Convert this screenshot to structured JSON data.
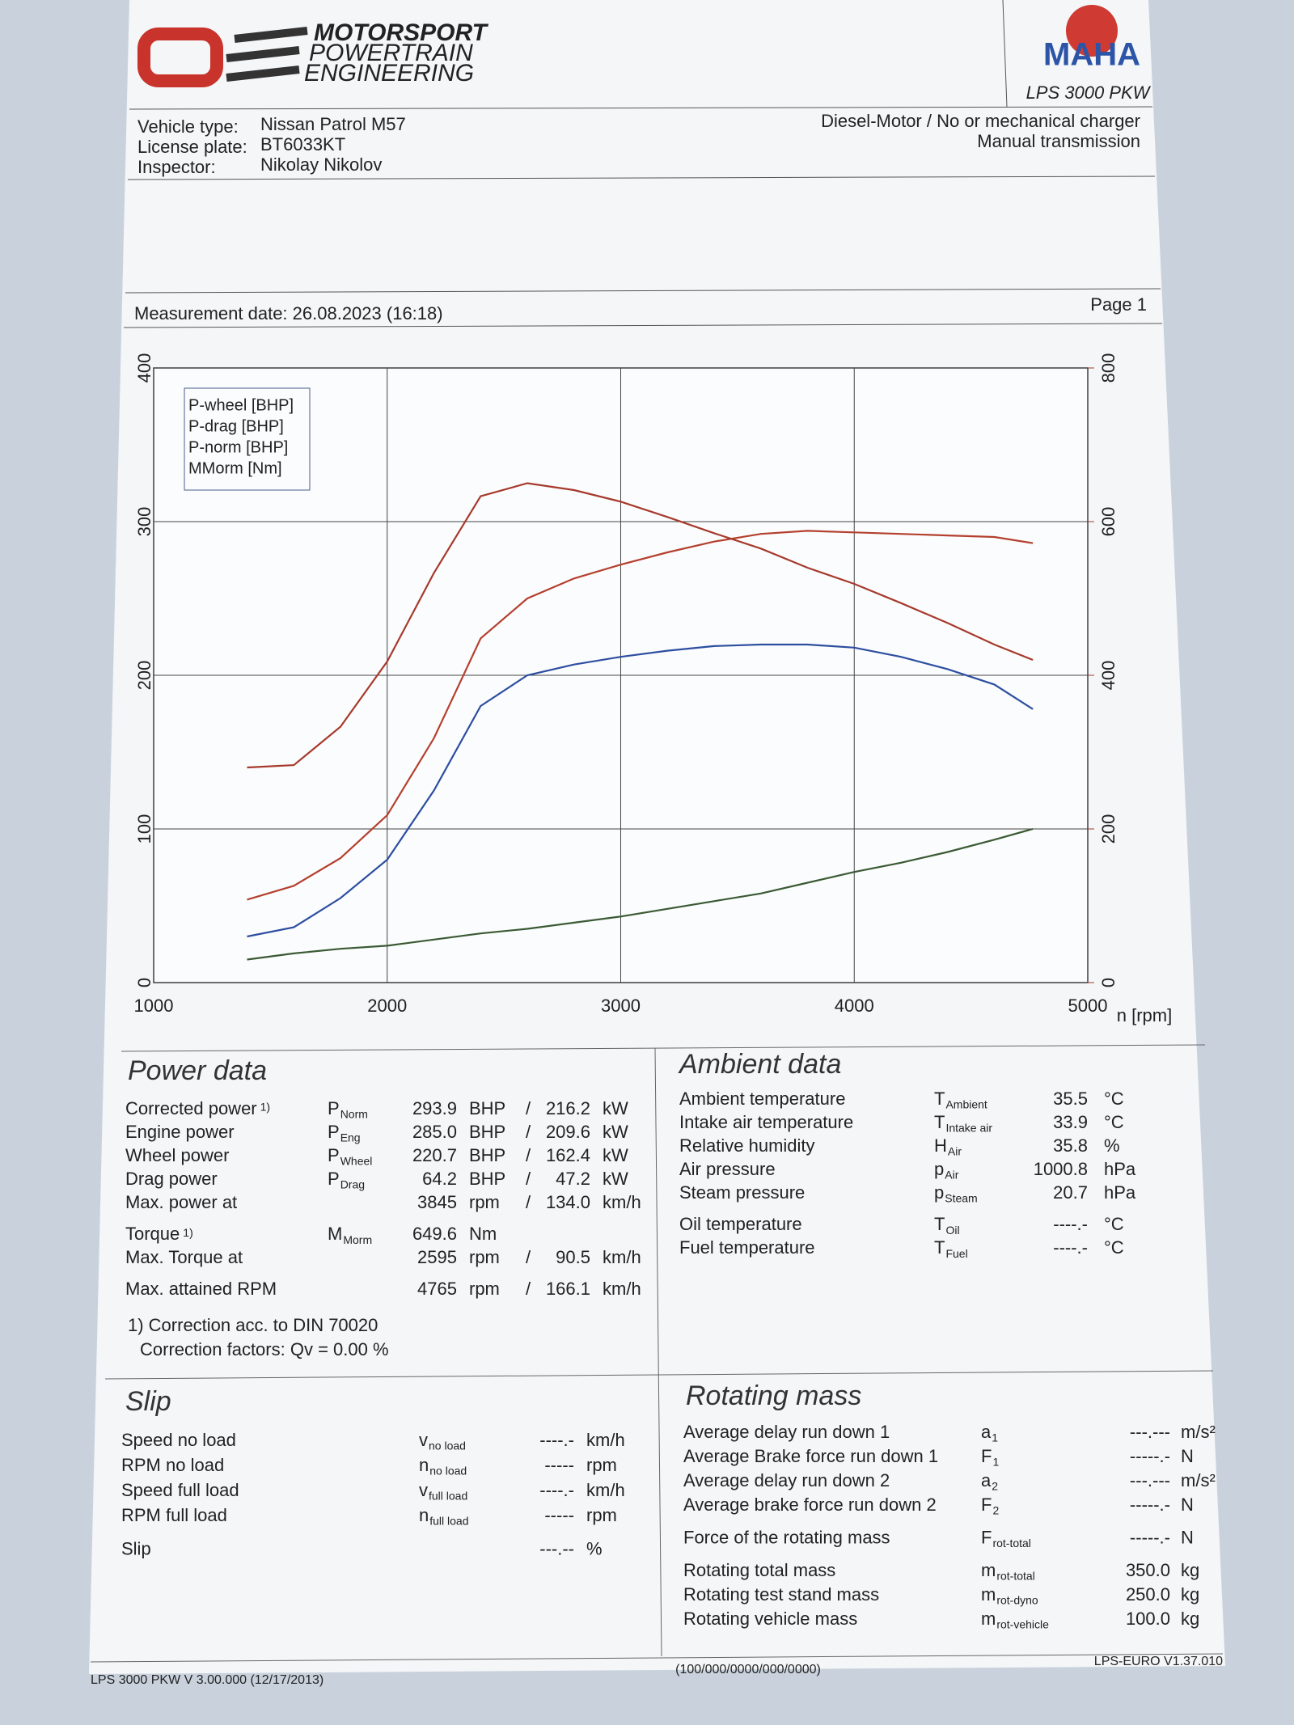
{
  "header": {
    "logo": [
      "MOTORSPORT",
      "POWERTRAIN",
      "ENGINEERING"
    ],
    "brand": "MAHA",
    "model": "LPS 3000 PKW"
  },
  "vehicle": [
    [
      "Vehicle type:",
      "Nissan Patrol M57"
    ],
    [
      "License plate:",
      "BT6033KT"
    ],
    [
      "Inspector:",
      "Nikolay Nikolov"
    ]
  ],
  "engine": [
    "Diesel-Motor / No or mechanical charger",
    "Manual transmission"
  ],
  "measurement": {
    "date": "Measurement date: 26.08.2023 (16:18)",
    "page": "Page 1"
  },
  "chart_data": {
    "type": "line",
    "x_label": "n [rpm]",
    "x": [
      1400,
      1600,
      1800,
      2000,
      2200,
      2400,
      2600,
      2800,
      3000,
      3200,
      3400,
      3600,
      3800,
      4000,
      4200,
      4400,
      4600,
      4765
    ],
    "xlim": [
      1000,
      5000
    ],
    "xticks": [
      1000,
      2000,
      3000,
      4000,
      5000
    ],
    "ylim": [
      0,
      400
    ],
    "yticks": [
      0,
      100,
      200,
      300,
      400
    ],
    "y2lim": [
      0,
      800
    ],
    "y2ticks": [
      0,
      200,
      400,
      600,
      800
    ],
    "grid": true,
    "legend": "top-left",
    "series": [
      {
        "name": "P-wheel [BHP]",
        "color": "#2d4ea0",
        "values": [
          30,
          36,
          55,
          80,
          125,
          180,
          200,
          207,
          212,
          216,
          219,
          220,
          220,
          218,
          212,
          204,
          194,
          178
        ]
      },
      {
        "name": "P-drag [BHP]",
        "color": "#3b5a34",
        "values": [
          15,
          19,
          22,
          24,
          28,
          32,
          35,
          39,
          43,
          48,
          53,
          58,
          65,
          72,
          78,
          85,
          93,
          100
        ]
      },
      {
        "name": "P-norm [BHP]",
        "color": "#b4402f",
        "values": [
          54,
          63,
          81,
          109,
          159,
          224,
          250,
          263,
          272,
          280,
          287,
          292,
          294,
          293,
          292,
          291,
          290,
          286
        ]
      },
      {
        "name": "MMorm [Nm]",
        "color": "#a63a2c",
        "axis": "y2",
        "values": [
          280,
          283,
          333,
          418,
          533,
          633,
          650,
          641,
          626,
          606,
          585,
          565,
          540,
          519,
          494,
          468,
          440,
          420
        ]
      }
    ]
  },
  "power_data": {
    "title": "Power data",
    "rows": [
      {
        "label": "Corrected power",
        "note": "1)",
        "sym": "P",
        "sub": "Norm",
        "v1": "293.9",
        "u1": "BHP",
        "sep": "/",
        "v2": "216.2",
        "u2": "kW",
        "color": "#b5483c"
      },
      {
        "label": "Engine power",
        "sym": "P",
        "sub": "Eng",
        "v1": "285.0",
        "u1": "BHP",
        "sep": "/",
        "v2": "209.6",
        "u2": "kW",
        "color": "#b5483c"
      },
      {
        "label": "Wheel power",
        "sym": "P",
        "sub": "Wheel",
        "v1": "220.7",
        "u1": "BHP",
        "sep": "/",
        "v2": "162.4",
        "u2": "kW",
        "color": "#34549e"
      },
      {
        "label": "Drag power",
        "sym": "P",
        "sub": "Drag",
        "v1": "64.2",
        "u1": "BHP",
        "sep": "/",
        "v2": "47.2",
        "u2": "kW",
        "color": "#3f5d36"
      },
      {
        "label": "Max. power at",
        "v1": "3845",
        "u1": "rpm",
        "sep": "/",
        "v2": "134.0",
        "u2": "km/h",
        "color": "#222222"
      },
      {
        "label": "Torque",
        "note": "1)",
        "sym": "M",
        "sub": "Morm",
        "v1": "649.6",
        "u1": "Nm",
        "color": "#b5483c"
      },
      {
        "label": "Max. Torque at",
        "v1": "2595",
        "u1": "rpm",
        "sep": "/",
        "v2": "90.5",
        "u2": "km/h",
        "color": "#222222"
      },
      {
        "label": "Max. attained RPM",
        "v1": "4765",
        "u1": "rpm",
        "sep": "/",
        "v2": "166.1",
        "u2": "km/h",
        "color": "#222222"
      }
    ],
    "notes": [
      "1) Correction acc. to DIN 70020",
      "Correction factors: Qv =  0.00 %"
    ]
  },
  "ambient_data": {
    "title": "Ambient data",
    "rows": [
      {
        "label": "Ambient temperature",
        "sym": "T",
        "sub": "Ambient",
        "value": "35.5",
        "unit": "°C"
      },
      {
        "label": "Intake air temperature",
        "sym": "T",
        "sub": "Intake air",
        "value": "33.9",
        "unit": "°C"
      },
      {
        "label": "Relative humidity",
        "sym": "H",
        "sub": "Air",
        "value": "35.8",
        "unit": "%"
      },
      {
        "label": "Air pressure",
        "sym": "p",
        "sub": "Air",
        "value": "1000.8",
        "unit": "hPa"
      },
      {
        "label": "Steam pressure",
        "sym": "p",
        "sub": "Steam",
        "value": "20.7",
        "unit": "hPa"
      },
      {
        "label": "Oil temperature",
        "sym": "T",
        "sub": "Oil",
        "value": "----.-",
        "unit": "°C"
      },
      {
        "label": "Fuel temperature",
        "sym": "T",
        "sub": "Fuel",
        "value": "----.-",
        "unit": "°C"
      }
    ]
  },
  "slip": {
    "title": "Slip",
    "rows": [
      {
        "label": "Speed no load",
        "sym": "v",
        "sub": "no load",
        "value": "----.-",
        "unit": "km/h"
      },
      {
        "label": "RPM no load",
        "sym": "n",
        "sub": "no load",
        "value": "-----",
        "unit": "rpm"
      },
      {
        "label": "Speed full load",
        "sym": "v",
        "sub": "full load",
        "value": "----.-",
        "unit": "km/h"
      },
      {
        "label": "RPM full load",
        "sym": "n",
        "sub": "full load",
        "value": "-----",
        "unit": "rpm"
      },
      {
        "label": "Slip",
        "value": "---.--",
        "unit": "%"
      }
    ]
  },
  "rotating_mass": {
    "title": "Rotating mass",
    "rows": [
      {
        "label": "Average delay run down 1",
        "sym": "a",
        "sub": "1",
        "value": "---.---",
        "unit": "m/s²"
      },
      {
        "label": "Average Brake force run down 1",
        "sym": "F",
        "sub": "1",
        "value": "-----.-",
        "unit": "N"
      },
      {
        "label": "Average delay run down 2",
        "sym": "a",
        "sub": "2",
        "value": "---.---",
        "unit": "m/s²"
      },
      {
        "label": "Average brake force run down 2",
        "sym": "F",
        "sub": "2",
        "value": "-----.-",
        "unit": "N"
      },
      {
        "label": "Force of the rotating mass",
        "sym": "F",
        "sub": "rot-total",
        "value": "-----.-",
        "unit": "N"
      },
      {
        "label": "Rotating total mass",
        "sym": "m",
        "sub": "rot-total",
        "value": "350.0",
        "unit": "kg"
      },
      {
        "label": "Rotating test stand mass",
        "sym": "m",
        "sub": "rot-dyno",
        "value": "250.0",
        "unit": "kg"
      },
      {
        "label": "Rotating vehicle mass",
        "sym": "m",
        "sub": "rot-vehicle",
        "value": "100.0",
        "unit": "kg"
      }
    ]
  },
  "footer": {
    "left": "LPS 3000 PKW V 3.00.000 (12/17/2013)",
    "center": "(100/000/0000/000/0000)",
    "right": "LPS-EURO V1.37.010"
  }
}
